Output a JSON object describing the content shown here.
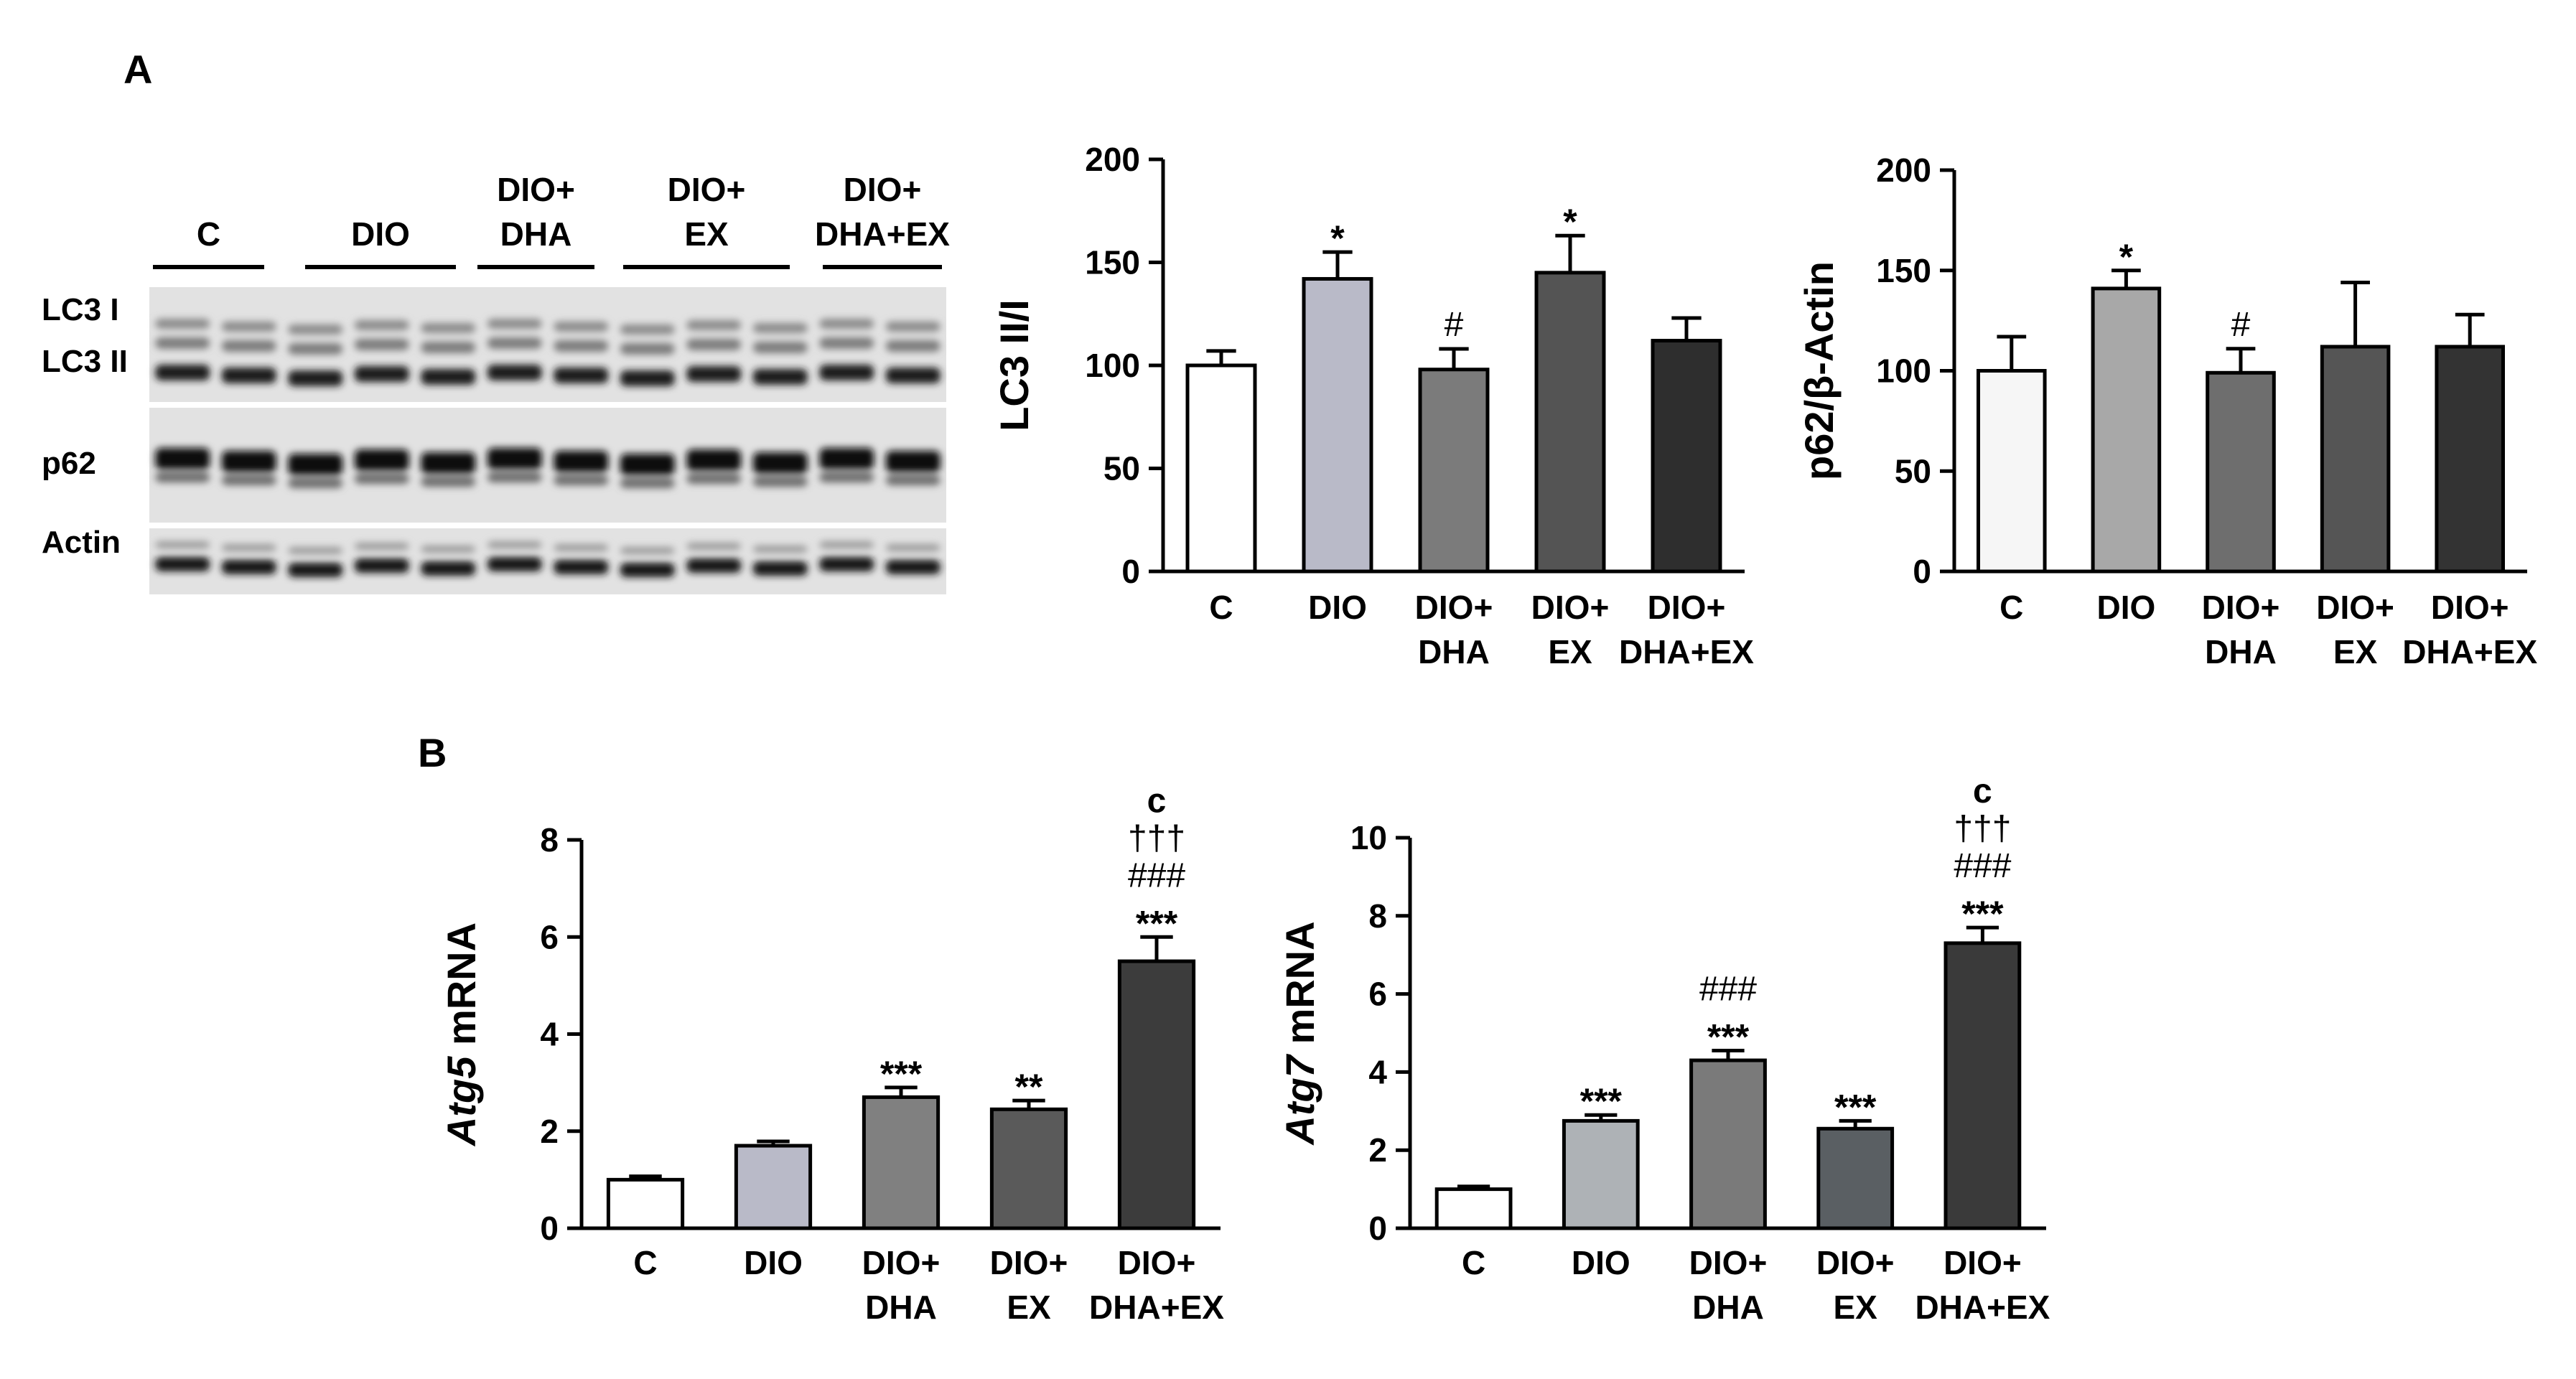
{
  "panels": {
    "A": "A",
    "B": "B"
  },
  "blot": {
    "groups": [
      {
        "label": [
          "C"
        ],
        "lanes": 2
      },
      {
        "label": [
          "DIO"
        ],
        "lanes": 3
      },
      {
        "label": [
          "DIO+",
          "DHA"
        ],
        "lanes": 2
      },
      {
        "label": [
          "DIO+",
          "EX"
        ],
        "lanes": 3
      },
      {
        "label": [
          "DIO+",
          "DHA+EX"
        ],
        "lanes": 2
      }
    ],
    "row_labels": [
      "LC3 I",
      "LC3 II",
      "p62",
      "Actin"
    ]
  },
  "colors": {
    "C": "#ffffff",
    "DIO": "#b9bac8",
    "DIO_DHA": "#7b7b7b",
    "DIO_EX": "#545454",
    "DIO_DHA_EX": "#2e2e2e",
    "axis": "#000000"
  },
  "chart_data": [
    {
      "id": "lc3",
      "type": "bar",
      "ylabel": "LC3 II/I",
      "categories": [
        [
          "C"
        ],
        [
          "DIO"
        ],
        [
          "DIO+",
          "DHA"
        ],
        [
          "DIO+",
          "EX"
        ],
        [
          "DIO+",
          "DHA+EX"
        ]
      ],
      "values": [
        100,
        142,
        98,
        145,
        112
      ],
      "errors": [
        7,
        13,
        10,
        18,
        11
      ],
      "annotations": [
        [],
        [
          "*"
        ],
        [
          "#"
        ],
        [
          "*"
        ],
        []
      ],
      "colors": [
        "#ffffff",
        "#b9bac8",
        "#7b7b7b",
        "#545454",
        "#2e2e2e"
      ],
      "ylim": [
        0,
        200
      ],
      "yticks": [
        0,
        50,
        100,
        150,
        200
      ]
    },
    {
      "id": "p62",
      "type": "bar",
      "ylabel": "p62/β-Actin",
      "categories": [
        [
          "C"
        ],
        [
          "DIO"
        ],
        [
          "DIO+",
          "DHA"
        ],
        [
          "DIO+",
          "EX"
        ],
        [
          "DIO+",
          "DHA+EX"
        ]
      ],
      "values": [
        100,
        141,
        99,
        112,
        112
      ],
      "errors": [
        17,
        9,
        12,
        32,
        16
      ],
      "annotations": [
        [],
        [
          "*"
        ],
        [
          "#"
        ],
        [],
        []
      ],
      "colors": [
        "#f6f6f6",
        "#a8a8a8",
        "#6e6e6e",
        "#555555",
        "#333333"
      ],
      "ylim": [
        0,
        200
      ],
      "yticks": [
        0,
        50,
        100,
        150,
        200
      ]
    },
    {
      "id": "atg5",
      "type": "bar",
      "ylabel_italic": "Atg5",
      "ylabel_rest": " mRNA",
      "categories": [
        [
          "C"
        ],
        [
          "DIO"
        ],
        [
          "DIO+",
          "DHA"
        ],
        [
          "DIO+",
          "EX"
        ],
        [
          "DIO+",
          "DHA+EX"
        ]
      ],
      "values": [
        1.0,
        1.7,
        2.7,
        2.45,
        5.5
      ],
      "errors": [
        0.07,
        0.09,
        0.2,
        0.18,
        0.5
      ],
      "annotations": [
        [],
        [],
        [
          "***"
        ],
        [
          "**"
        ],
        [
          "c",
          "†††",
          "###",
          "***"
        ]
      ],
      "colors": [
        "#ffffff",
        "#b9bac8",
        "#808080",
        "#5a5a5a",
        "#3c3c3c"
      ],
      "ylim": [
        0,
        8
      ],
      "yticks": [
        0,
        2,
        4,
        6,
        8
      ]
    },
    {
      "id": "atg7",
      "type": "bar",
      "ylabel_italic": "Atg7",
      "ylabel_rest": " mRNA",
      "categories": [
        [
          "C"
        ],
        [
          "DIO"
        ],
        [
          "DIO+",
          "DHA"
        ],
        [
          "DIO+",
          "EX"
        ],
        [
          "DIO+",
          "DHA+EX"
        ]
      ],
      "values": [
        1.0,
        2.75,
        4.3,
        2.55,
        7.3
      ],
      "errors": [
        0.07,
        0.15,
        0.25,
        0.2,
        0.4
      ],
      "annotations": [
        [],
        [
          "***"
        ],
        [
          "###",
          "***"
        ],
        [
          "***"
        ],
        [
          "c",
          "†††",
          "###",
          "***"
        ]
      ],
      "colors": [
        "#ffffff",
        "#aeb2b6",
        "#7a7a7a",
        "#5a5f63",
        "#3a3a3a"
      ],
      "ylim": [
        0,
        10
      ],
      "yticks": [
        0,
        2,
        4,
        6,
        8,
        10
      ]
    }
  ]
}
